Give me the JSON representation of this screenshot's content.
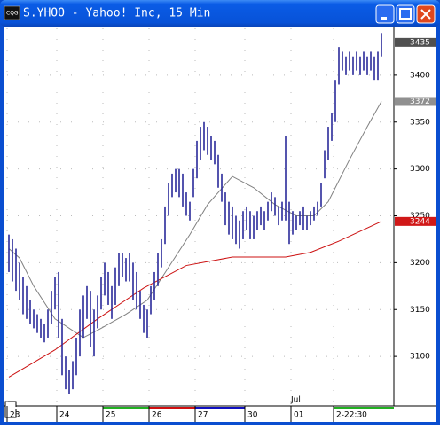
{
  "window_title": "S.YHOO - Yahoo! Inc, 15 Min",
  "chart_data": {
    "type": "range",
    "color": "#2a2a9a",
    "xlim": [
      0,
      109
    ],
    "ylim": [
      3050,
      3450
    ],
    "yticks": [
      3100,
      3150,
      3200,
      3250,
      3300,
      3350,
      3400
    ],
    "grid": true,
    "xticks": [
      {
        "value": 0,
        "label": "23"
      },
      {
        "value": 14,
        "label": "24"
      },
      {
        "value": 27,
        "label": "25"
      },
      {
        "value": 40,
        "label": "26"
      },
      {
        "value": 53,
        "label": "27"
      },
      {
        "value": 67,
        "label": "30"
      },
      {
        "value": 80,
        "label": "01"
      },
      {
        "value": 92,
        "label": "2-22:30"
      }
    ],
    "session_colors": [
      "#ffffff",
      "#ffffff",
      "#22b022",
      "#d01010",
      "#1010c0",
      "#ffffff",
      "#ffffff",
      "#22b022"
    ],
    "annotations": [
      {
        "text": "Jul",
        "x": 80
      }
    ],
    "high": [
      3230,
      3225,
      3215,
      3200,
      3185,
      3175,
      3160,
      3150,
      3145,
      3140,
      3135,
      3150,
      3170,
      3185,
      3190,
      3140,
      3100,
      3085,
      3095,
      3120,
      3150,
      3165,
      3175,
      3170,
      3150,
      3165,
      3185,
      3200,
      3190,
      3175,
      3195,
      3210,
      3210,
      3205,
      3210,
      3200,
      3190,
      3170,
      3155,
      3150,
      3175,
      3190,
      3210,
      3225,
      3260,
      3285,
      3295,
      3300,
      3300,
      3295,
      3275,
      3265,
      3300,
      3330,
      3345,
      3350,
      3345,
      3335,
      3330,
      3315,
      3295,
      3275,
      3265,
      3260,
      3250,
      3245,
      3255,
      3260,
      3255,
      3250,
      3255,
      3260,
      3255,
      3265,
      3275,
      3270,
      3260,
      3265,
      3335,
      3265,
      3255,
      3250,
      3255,
      3260,
      3250,
      3255,
      3260,
      3265,
      3285,
      3320,
      3345,
      3360,
      3395,
      3430,
      3425,
      3420,
      3425,
      3420,
      3425,
      3420,
      3425,
      3420,
      3425,
      3420,
      3425,
      3445
    ],
    "low": [
      3190,
      3180,
      3170,
      3160,
      3145,
      3140,
      3135,
      3130,
      3125,
      3120,
      3115,
      3120,
      3135,
      3150,
      3120,
      3080,
      3065,
      3060,
      3065,
      3080,
      3100,
      3120,
      3140,
      3110,
      3100,
      3130,
      3150,
      3165,
      3155,
      3140,
      3155,
      3175,
      3185,
      3180,
      3180,
      3160,
      3150,
      3140,
      3125,
      3120,
      3145,
      3160,
      3175,
      3195,
      3220,
      3250,
      3270,
      3275,
      3270,
      3260,
      3250,
      3245,
      3270,
      3290,
      3310,
      3320,
      3315,
      3310,
      3305,
      3280,
      3265,
      3240,
      3230,
      3225,
      3220,
      3215,
      3225,
      3235,
      3225,
      3225,
      3235,
      3240,
      3235,
      3245,
      3255,
      3250,
      3240,
      3245,
      3245,
      3220,
      3230,
      3235,
      3240,
      3235,
      3235,
      3240,
      3245,
      3250,
      3260,
      3290,
      3310,
      3330,
      3350,
      3390,
      3405,
      3400,
      3405,
      3400,
      3405,
      3400,
      3405,
      3400,
      3405,
      3395,
      3395,
      3420
    ],
    "series": [
      {
        "color": "#808080",
        "x": [
          0,
          3,
          7,
          13,
          21,
          26,
          33,
          39,
          45,
          51,
          56,
          63,
          69,
          75,
          81,
          86,
          90,
          96,
          101,
          105
        ],
        "values": [
          3215,
          3205,
          3175,
          3140,
          3120,
          3130,
          3145,
          3160,
          3195,
          3230,
          3262,
          3292,
          3280,
          3262,
          3250,
          3250,
          3265,
          3310,
          3345,
          3372
        ]
      },
      {
        "color": "#cc1111",
        "x": [
          0,
          13,
          25,
          38,
          50,
          63,
          78,
          85,
          93,
          105
        ],
        "values": [
          3078,
          3107,
          3140,
          3173,
          3197,
          3206,
          3206,
          3211,
          3223,
          3244
        ]
      }
    ],
    "last_labels": [
      {
        "value": 3435,
        "color": "#505050"
      },
      {
        "value": 3372,
        "color": "#909090"
      },
      {
        "value": 3244,
        "color": "#d01818"
      }
    ]
  }
}
